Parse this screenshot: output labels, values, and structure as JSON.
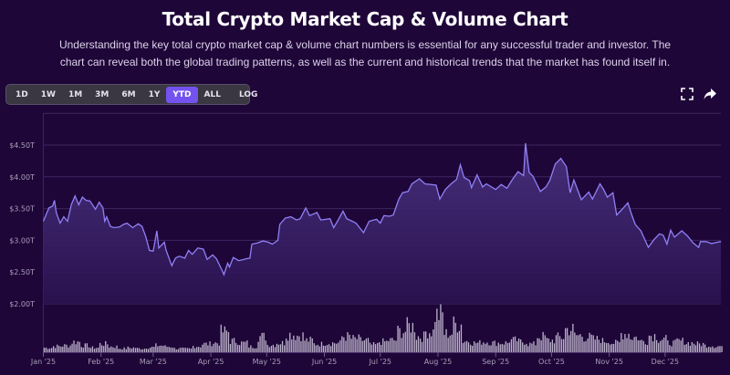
{
  "header": {
    "title": "Total Crypto Market Cap & Volume Chart",
    "description": "Understanding the key total crypto market cap & volume chart numbers is essential for any successful trader and investor. The chart can reveal both the global trading patterns, as well as the current and historical trends that the market has found itself in."
  },
  "toolbar": {
    "ranges": [
      "1D",
      "1W",
      "1M",
      "3M",
      "6M",
      "1Y",
      "YTD",
      "ALL"
    ],
    "active": "YTD",
    "log_label": "LOG",
    "fullscreen_icon": "fullscreen-icon",
    "share_icon": "share-icon"
  },
  "colors": {
    "background": "#1f0638",
    "line": "#8f80f5",
    "area_top": "#4a3280",
    "volume_bar": "#bdb3cc",
    "active_button": "#7452f0",
    "grid": "#3c2660"
  },
  "chart_data": [
    {
      "type": "area",
      "series_role": "market cap",
      "y_ticks": [
        "$2.00T",
        "$2.50T",
        "$3.00T",
        "$3.50T",
        "$4.00T",
        "$4.50T"
      ],
      "y_tick_values": [
        2.0,
        2.5,
        3.0,
        3.5,
        4.0,
        4.5
      ],
      "ylim": [
        2.0,
        5.0
      ],
      "y_unit": "trillion USD",
      "x_ticks": [
        "Jan '25",
        "Feb '25",
        "Mar '25",
        "Apr '25",
        "May '25",
        "Jun '25",
        "Jul '25",
        "Aug '25",
        "Sep '25",
        "Oct '25",
        "Nov '25",
        "Dec '25"
      ],
      "x_tick_dates": [
        "2025-01-01",
        "2025-02-01",
        "2025-03-01",
        "2025-04-01",
        "2025-05-01",
        "2025-06-01",
        "2025-07-01",
        "2025-08-01",
        "2025-09-01",
        "2025-10-01",
        "2025-11-01",
        "2025-12-01"
      ],
      "xlim": [
        "2025-01-01",
        "2025-12-31"
      ],
      "grid": true,
      "points": [
        [
          "2025-01-01",
          3.3
        ],
        [
          "2025-01-04",
          3.51
        ],
        [
          "2025-01-06",
          3.54
        ],
        [
          "2025-01-07",
          3.63
        ],
        [
          "2025-01-08",
          3.43
        ],
        [
          "2025-01-10",
          3.27
        ],
        [
          "2025-01-12",
          3.37
        ],
        [
          "2025-01-14",
          3.3
        ],
        [
          "2025-01-16",
          3.56
        ],
        [
          "2025-01-18",
          3.7
        ],
        [
          "2025-01-20",
          3.56
        ],
        [
          "2025-01-22",
          3.68
        ],
        [
          "2025-01-24",
          3.63
        ],
        [
          "2025-01-26",
          3.62
        ],
        [
          "2025-01-29",
          3.49
        ],
        [
          "2025-01-31",
          3.6
        ],
        [
          "2025-02-02",
          3.51
        ],
        [
          "2025-02-03",
          3.3
        ],
        [
          "2025-02-04",
          3.37
        ],
        [
          "2025-02-06",
          3.22
        ],
        [
          "2025-02-08",
          3.2
        ],
        [
          "2025-02-11",
          3.21
        ],
        [
          "2025-02-13",
          3.25
        ],
        [
          "2025-02-15",
          3.27
        ],
        [
          "2025-02-18",
          3.2
        ],
        [
          "2025-02-21",
          3.26
        ],
        [
          "2025-02-23",
          3.22
        ],
        [
          "2025-02-25",
          3.06
        ],
        [
          "2025-02-27",
          2.84
        ],
        [
          "2025-03-01",
          2.83
        ],
        [
          "2025-03-03",
          3.15
        ],
        [
          "2025-03-04",
          2.88
        ],
        [
          "2025-03-07",
          2.97
        ],
        [
          "2025-03-08",
          2.84
        ],
        [
          "2025-03-11",
          2.6
        ],
        [
          "2025-03-13",
          2.72
        ],
        [
          "2025-03-15",
          2.75
        ],
        [
          "2025-03-18",
          2.72
        ],
        [
          "2025-03-20",
          2.84
        ],
        [
          "2025-03-22",
          2.78
        ],
        [
          "2025-03-25",
          2.88
        ],
        [
          "2025-03-28",
          2.86
        ],
        [
          "2025-03-30",
          2.7
        ],
        [
          "2025-04-02",
          2.77
        ],
        [
          "2025-04-04",
          2.71
        ],
        [
          "2025-04-07",
          2.53
        ],
        [
          "2025-04-08",
          2.46
        ],
        [
          "2025-04-10",
          2.64
        ],
        [
          "2025-04-11",
          2.58
        ],
        [
          "2025-04-13",
          2.73
        ],
        [
          "2025-04-16",
          2.68
        ],
        [
          "2025-04-20",
          2.71
        ],
        [
          "2025-04-22",
          2.72
        ],
        [
          "2025-04-23",
          2.94
        ],
        [
          "2025-04-26",
          2.96
        ],
        [
          "2025-04-29",
          2.99
        ],
        [
          "2025-05-02",
          2.97
        ],
        [
          "2025-05-04",
          2.94
        ],
        [
          "2025-05-07",
          3.0
        ],
        [
          "2025-05-08",
          3.25
        ],
        [
          "2025-05-11",
          3.35
        ],
        [
          "2025-05-14",
          3.37
        ],
        [
          "2025-05-17",
          3.32
        ],
        [
          "2025-05-19",
          3.34
        ],
        [
          "2025-05-22",
          3.51
        ],
        [
          "2025-05-24",
          3.39
        ],
        [
          "2025-05-28",
          3.44
        ],
        [
          "2025-05-30",
          3.32
        ],
        [
          "2025-06-04",
          3.34
        ],
        [
          "2025-06-06",
          3.2
        ],
        [
          "2025-06-08",
          3.3
        ],
        [
          "2025-06-11",
          3.46
        ],
        [
          "2025-06-13",
          3.34
        ],
        [
          "2025-06-16",
          3.3
        ],
        [
          "2025-06-18",
          3.27
        ],
        [
          "2025-06-22",
          3.12
        ],
        [
          "2025-06-25",
          3.3
        ],
        [
          "2025-06-29",
          3.33
        ],
        [
          "2025-07-01",
          3.27
        ],
        [
          "2025-07-03",
          3.39
        ],
        [
          "2025-07-06",
          3.38
        ],
        [
          "2025-07-08",
          3.4
        ],
        [
          "2025-07-11",
          3.65
        ],
        [
          "2025-07-13",
          3.75
        ],
        [
          "2025-07-16",
          3.77
        ],
        [
          "2025-07-18",
          3.89
        ],
        [
          "2025-07-22",
          3.97
        ],
        [
          "2025-07-25",
          3.89
        ],
        [
          "2025-07-31",
          3.87
        ],
        [
          "2025-08-02",
          3.65
        ],
        [
          "2025-08-05",
          3.8
        ],
        [
          "2025-08-08",
          3.89
        ],
        [
          "2025-08-11",
          3.96
        ],
        [
          "2025-08-13",
          4.19
        ],
        [
          "2025-08-15",
          3.99
        ],
        [
          "2025-08-18",
          3.94
        ],
        [
          "2025-08-19",
          3.83
        ],
        [
          "2025-08-22",
          4.03
        ],
        [
          "2025-08-25",
          3.84
        ],
        [
          "2025-08-27",
          3.89
        ],
        [
          "2025-09-01",
          3.8
        ],
        [
          "2025-09-04",
          3.88
        ],
        [
          "2025-09-07",
          3.82
        ],
        [
          "2025-09-10",
          3.96
        ],
        [
          "2025-09-13",
          4.08
        ],
        [
          "2025-09-16",
          4.02
        ],
        [
          "2025-09-17",
          4.53
        ],
        [
          "2025-09-19",
          4.07
        ],
        [
          "2025-09-21",
          4.01
        ],
        [
          "2025-09-23",
          3.89
        ],
        [
          "2025-09-25",
          3.77
        ],
        [
          "2025-09-28",
          3.84
        ],
        [
          "2025-09-30",
          3.94
        ],
        [
          "2025-10-03",
          4.2
        ],
        [
          "2025-10-06",
          4.29
        ],
        [
          "2025-10-09",
          4.16
        ],
        [
          "2025-10-11",
          3.75
        ],
        [
          "2025-10-13",
          3.95
        ],
        [
          "2025-10-17",
          3.64
        ],
        [
          "2025-10-21",
          3.76
        ],
        [
          "2025-10-23",
          3.65
        ],
        [
          "2025-10-27",
          3.89
        ],
        [
          "2025-10-29",
          3.8
        ],
        [
          "2025-10-31",
          3.68
        ],
        [
          "2025-11-03",
          3.75
        ],
        [
          "2025-11-05",
          3.4
        ],
        [
          "2025-11-08",
          3.49
        ],
        [
          "2025-11-11",
          3.59
        ],
        [
          "2025-11-13",
          3.41
        ],
        [
          "2025-11-15",
          3.25
        ],
        [
          "2025-11-18",
          3.15
        ],
        [
          "2025-11-22",
          2.89
        ],
        [
          "2025-11-25",
          3.01
        ],
        [
          "2025-11-28",
          3.1
        ],
        [
          "2025-11-30",
          3.08
        ],
        [
          "2025-12-02",
          2.94
        ],
        [
          "2025-12-04",
          3.16
        ],
        [
          "2025-12-06",
          3.05
        ],
        [
          "2025-12-10",
          3.15
        ],
        [
          "2025-12-13",
          3.07
        ],
        [
          "2025-12-16",
          2.96
        ],
        [
          "2025-12-19",
          2.89
        ],
        [
          "2025-12-20",
          2.98
        ],
        [
          "2025-12-23",
          2.98
        ],
        [
          "2025-12-26",
          2.95
        ],
        [
          "2025-12-29",
          2.97
        ],
        [
          "2025-12-31",
          2.98
        ]
      ]
    },
    {
      "type": "bar",
      "series_role": "volume (relative, 5-day groups)",
      "start": "2025-01-01",
      "values": [
        12,
        16,
        18,
        28,
        18,
        12,
        22,
        15,
        10,
        12,
        10,
        13,
        18,
        15,
        10,
        9,
        16,
        22,
        25,
        55,
        30,
        25,
        15,
        42,
        20,
        25,
        48,
        45,
        32,
        22,
        25,
        25,
        42,
        36,
        32,
        20,
        28,
        32,
        56,
        70,
        42,
        55,
        100,
        50,
        75,
        30,
        25,
        28,
        25,
        25,
        32,
        28,
        22,
        42,
        32,
        40,
        62,
        45,
        40,
        35,
        30,
        25,
        50,
        40,
        30,
        45,
        35,
        25,
        30,
        25,
        22,
        18,
        16
      ]
    }
  ]
}
